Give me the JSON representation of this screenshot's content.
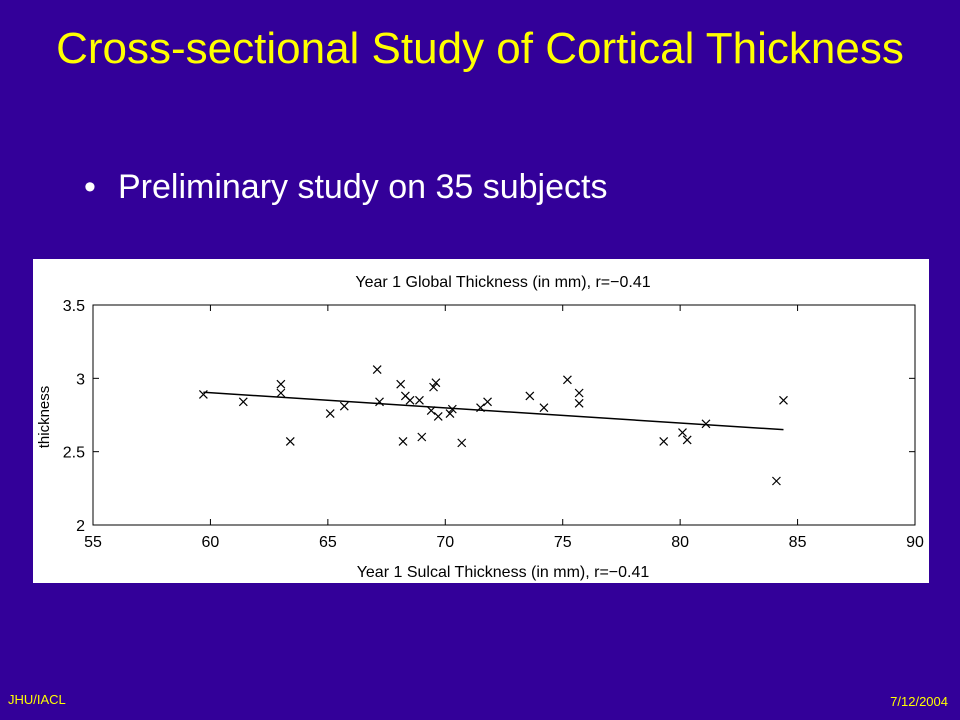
{
  "slide": {
    "title": "Cross-sectional Study of Cortical Thickness",
    "bullets": [
      "Preliminary study on 35 subjects"
    ],
    "footer_left": "JHU/IACL",
    "footer_right": "7/12/2004"
  },
  "colors": {
    "background": "#330099",
    "title": "#ffff00",
    "bullet_text": "#ffffff",
    "footer": "#ffff00",
    "chart_bg": "#ffffff",
    "ink": "#000000"
  },
  "chart_data": {
    "type": "scatter",
    "title": "Year 1 Global Thickness (in mm), r=−0.41",
    "xlabel": "Year 1 Sulcal Thickness (in mm), r=−0.41",
    "ylabel": "thickness",
    "xlim": [
      55,
      90
    ],
    "ylim": [
      2,
      3.5
    ],
    "xticks": [
      55,
      60,
      65,
      70,
      75,
      80,
      85,
      90
    ],
    "yticks": [
      2,
      2.5,
      3,
      3.5
    ],
    "xtick_labels": [
      "55",
      "60",
      "65",
      "70",
      "75",
      "80",
      "85",
      "90"
    ],
    "ytick_labels": [
      "2",
      "2.5",
      "3",
      "3.5"
    ],
    "grid": false,
    "marker": "x",
    "points": [
      [
        59.7,
        2.89
      ],
      [
        61.4,
        2.84
      ],
      [
        63.0,
        2.96
      ],
      [
        63.0,
        2.9
      ],
      [
        63.4,
        2.57
      ],
      [
        65.1,
        2.76
      ],
      [
        65.7,
        2.81
      ],
      [
        67.1,
        3.06
      ],
      [
        67.2,
        2.84
      ],
      [
        68.1,
        2.96
      ],
      [
        68.2,
        2.57
      ],
      [
        68.3,
        2.88
      ],
      [
        68.5,
        2.85
      ],
      [
        68.9,
        2.85
      ],
      [
        69.0,
        2.6
      ],
      [
        69.4,
        2.78
      ],
      [
        69.5,
        2.94
      ],
      [
        69.6,
        2.97
      ],
      [
        69.7,
        2.74
      ],
      [
        70.2,
        2.76
      ],
      [
        70.3,
        2.79
      ],
      [
        70.7,
        2.56
      ],
      [
        71.5,
        2.8
      ],
      [
        71.8,
        2.84
      ],
      [
        73.6,
        2.88
      ],
      [
        74.2,
        2.8
      ],
      [
        75.2,
        2.99
      ],
      [
        75.7,
        2.9
      ],
      [
        75.7,
        2.83
      ],
      [
        79.3,
        2.57
      ],
      [
        80.1,
        2.63
      ],
      [
        80.3,
        2.58
      ],
      [
        81.1,
        2.69
      ],
      [
        84.1,
        2.3
      ],
      [
        84.4,
        2.85
      ]
    ],
    "fit_line": [
      [
        59.7,
        2.905
      ],
      [
        84.4,
        2.65
      ]
    ]
  }
}
